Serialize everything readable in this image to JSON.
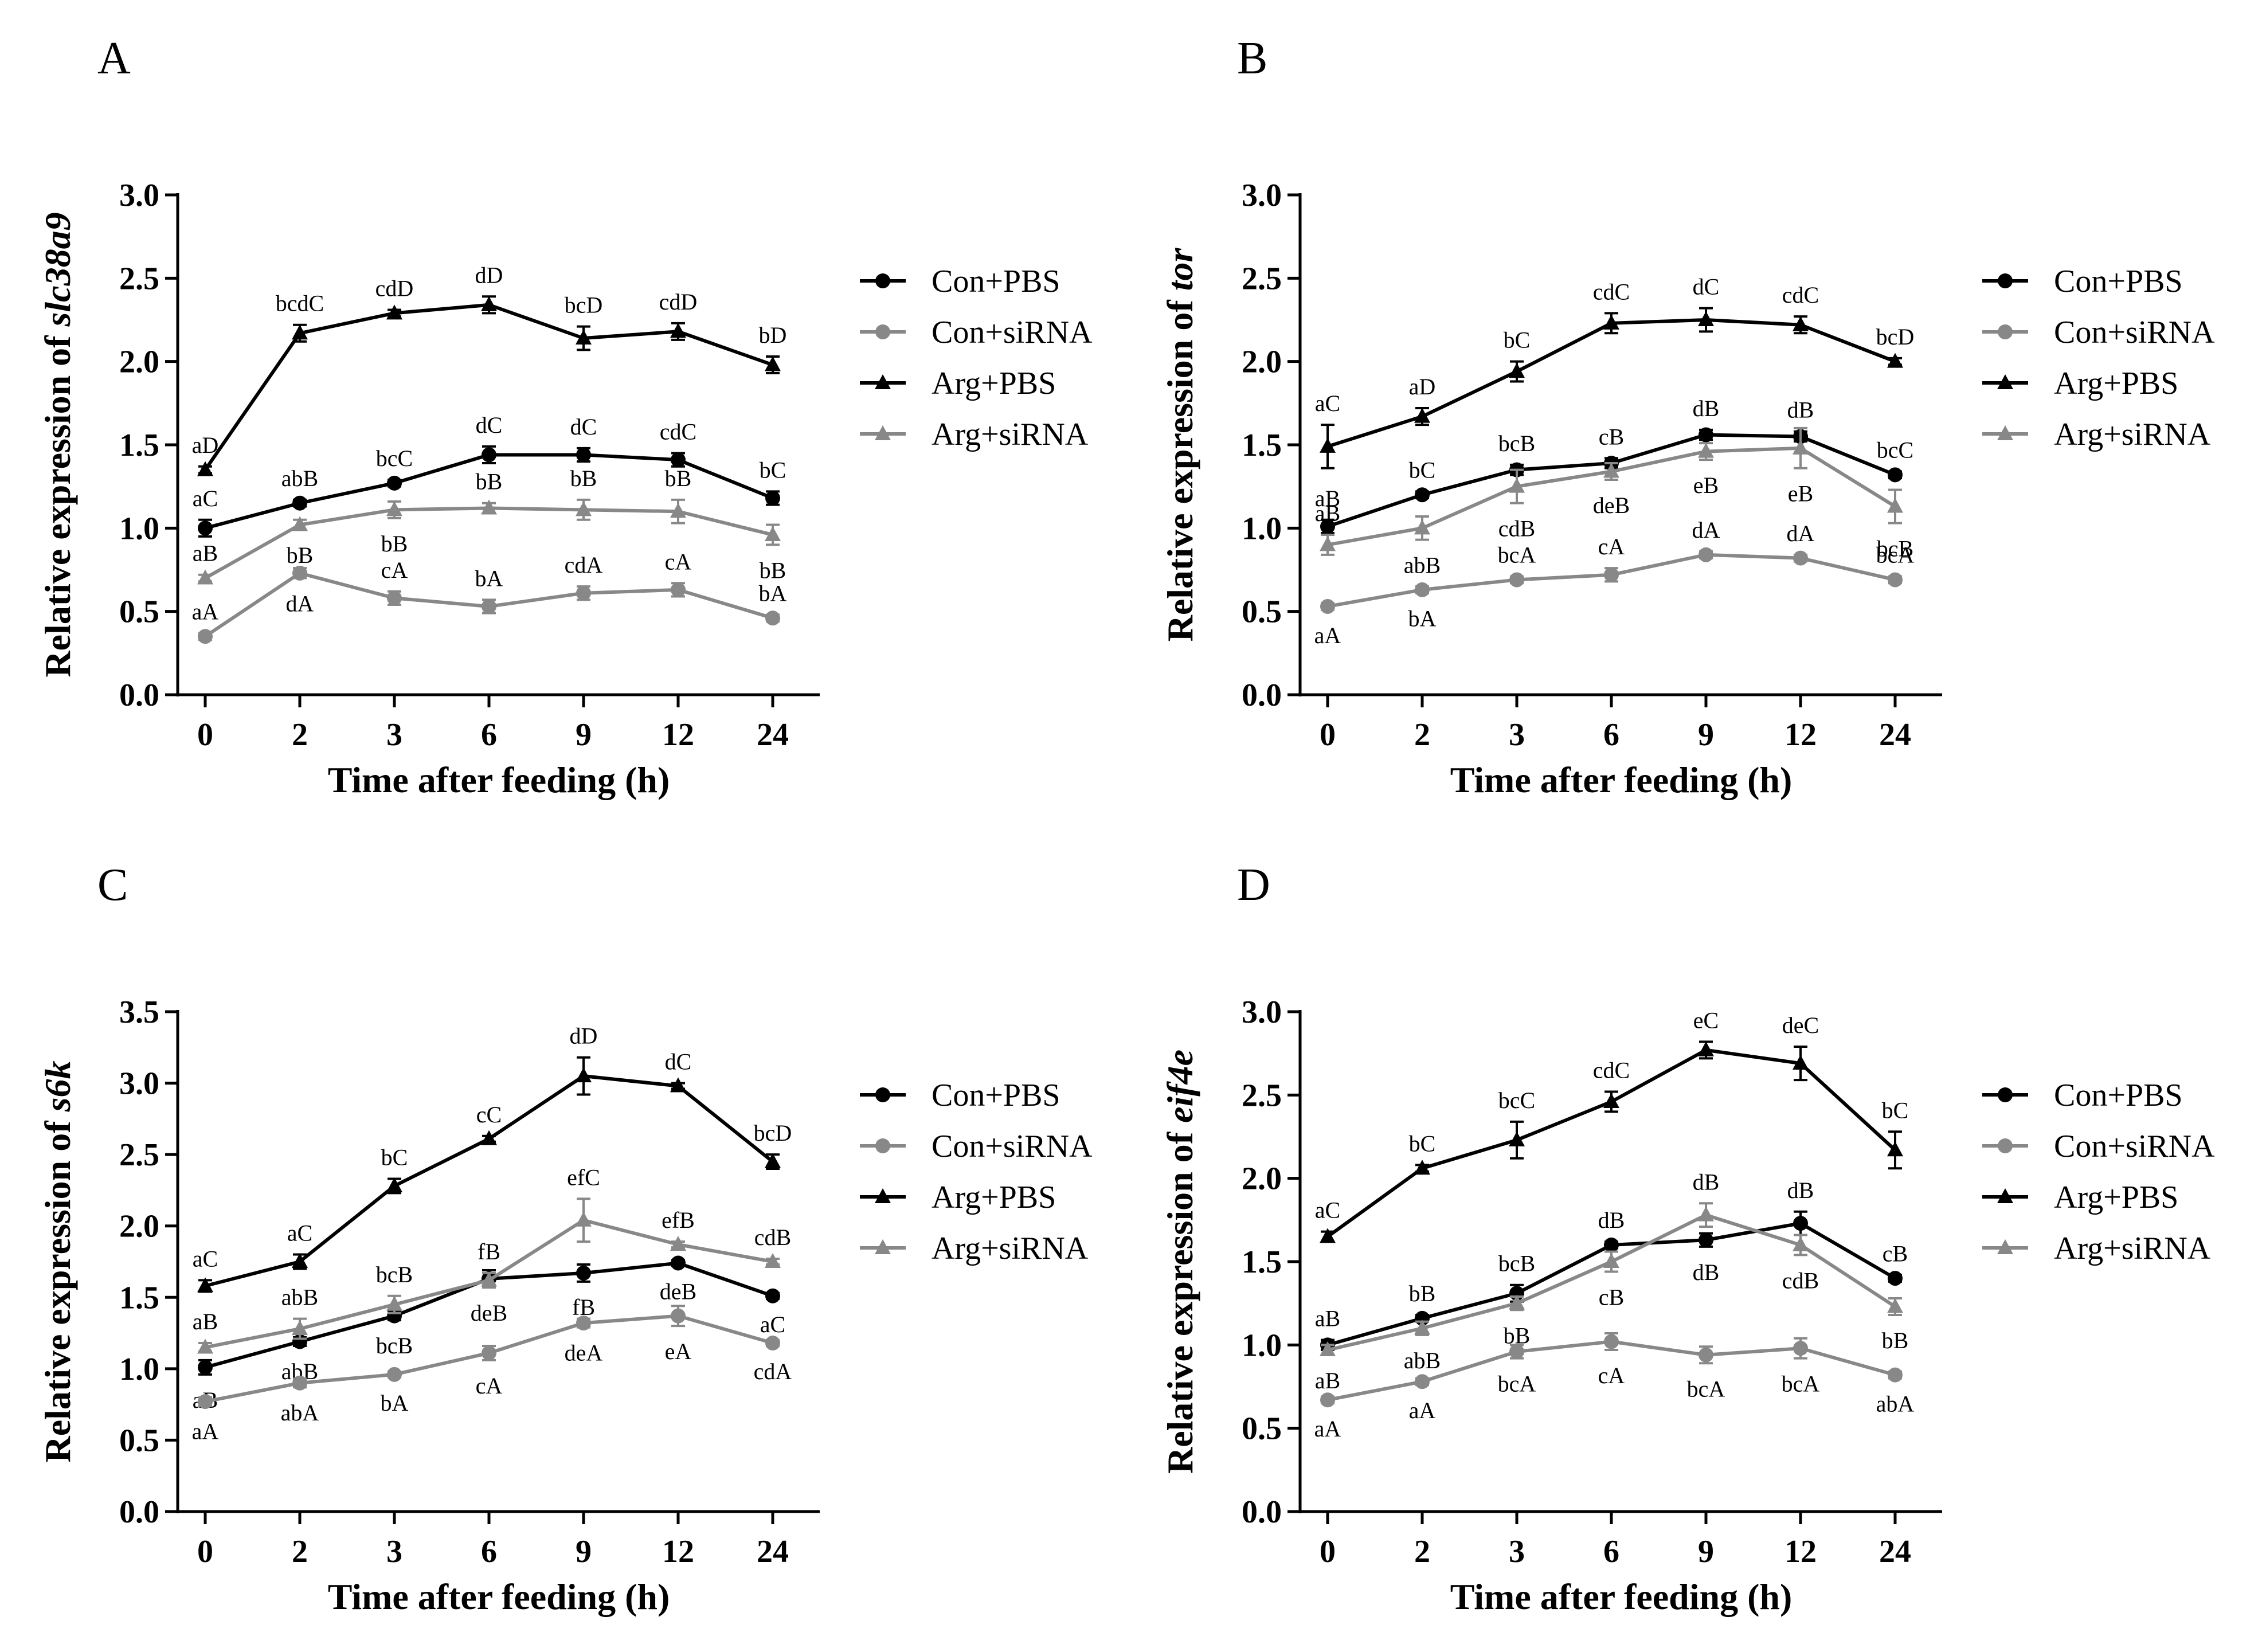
{
  "figure_labels": [
    "A",
    "B",
    "C",
    "D"
  ],
  "legend": [
    {
      "name": "Con+PBS",
      "color": "#000000",
      "marker": "circle"
    },
    {
      "name": "Con+siRNA",
      "color": "#808080",
      "marker": "circle"
    },
    {
      "name": "Arg+PBS",
      "color": "#000000",
      "marker": "triangle"
    },
    {
      "name": "Arg+siRNA",
      "color": "#808080",
      "marker": "triangle"
    }
  ],
  "chart_data": [
    {
      "panel": "A",
      "type": "line",
      "xlabel": "Time after feeding (h)",
      "ylabel_prefix": "Relative expression of ",
      "ylabel_gene": "slc38a9",
      "categories": [
        "0",
        "2",
        "3",
        "6",
        "9",
        "12",
        "24"
      ],
      "ylim": [
        0,
        3.0
      ],
      "yticks": [
        "0.0",
        "0.5",
        "1.0",
        "1.5",
        "2.0",
        "2.5",
        "3.0"
      ],
      "series": [
        {
          "name": "Con+PBS",
          "values": [
            1.0,
            1.15,
            1.27,
            1.44,
            1.44,
            1.41,
            1.18
          ],
          "errors": [
            0.05,
            0.02,
            0.02,
            0.05,
            0.04,
            0.04,
            0.04
          ],
          "labels": [
            "aC",
            "abB",
            "bcC",
            "dC",
            "dC",
            "cdC",
            "bC"
          ],
          "label_pos": [
            "above",
            "above",
            "above",
            "above",
            "above",
            "above",
            "above"
          ]
        },
        {
          "name": "Con+siRNA",
          "values": [
            0.35,
            0.73,
            0.58,
            0.53,
            0.61,
            0.63,
            0.46
          ],
          "errors": [
            0.02,
            0.03,
            0.04,
            0.04,
            0.04,
            0.04,
            0.02
          ],
          "labels": [
            "aA",
            "dA",
            "cA",
            "bA",
            "cdA",
            "cA",
            "bA"
          ],
          "label_pos": [
            "above",
            "below",
            "above",
            "above",
            "above",
            "above",
            "above"
          ]
        },
        {
          "name": "Arg+PBS",
          "values": [
            1.35,
            2.17,
            2.29,
            2.34,
            2.14,
            2.18,
            1.98
          ],
          "errors": [
            0.02,
            0.05,
            0.02,
            0.05,
            0.07,
            0.05,
            0.05
          ],
          "labels": [
            "aD",
            "bcdC",
            "cdD",
            "dD",
            "bcD",
            "cdD",
            "bD"
          ],
          "label_pos": [
            "above",
            "above",
            "above",
            "above",
            "above",
            "above",
            "above"
          ]
        },
        {
          "name": "Arg+siRNA",
          "values": [
            0.7,
            1.02,
            1.11,
            1.12,
            1.11,
            1.1,
            0.96
          ],
          "errors": [
            0.02,
            0.03,
            0.05,
            0.03,
            0.06,
            0.07,
            0.06
          ],
          "labels": [
            "aB",
            "bB",
            "bB",
            "bB",
            "bB",
            "bB",
            "bB"
          ],
          "label_pos": [
            "above",
            "below",
            "below",
            "above",
            "above",
            "above",
            "below"
          ]
        }
      ]
    },
    {
      "panel": "B",
      "type": "line",
      "xlabel": "Time after feeding (h)",
      "ylabel_prefix": "Relative expression of ",
      "ylabel_gene": "tor",
      "categories": [
        "0",
        "2",
        "3",
        "6",
        "9",
        "12",
        "24"
      ],
      "ylim": [
        0,
        3.0
      ],
      "yticks": [
        "0.0",
        "0.5",
        "1.0",
        "1.5",
        "2.0",
        "2.5",
        "3.0"
      ],
      "series": [
        {
          "name": "Con+PBS",
          "values": [
            1.01,
            1.2,
            1.35,
            1.39,
            1.56,
            1.55,
            1.32
          ],
          "errors": [
            0.04,
            0.02,
            0.03,
            0.03,
            0.03,
            0.03,
            0.02
          ],
          "labels": [
            "aB",
            "bC",
            "bcB",
            "cB",
            "dB",
            "dB",
            "bcC"
          ],
          "label_pos": [
            "above",
            "above",
            "above",
            "above",
            "above",
            "above",
            "above"
          ]
        },
        {
          "name": "Con+siRNA",
          "values": [
            0.53,
            0.63,
            0.69,
            0.72,
            0.84,
            0.82,
            0.69
          ],
          "errors": [
            0.02,
            0.02,
            0.02,
            0.04,
            0.02,
            0.02,
            0.02
          ],
          "labels": [
            "aA",
            "bA",
            "bcA",
            "cA",
            "dA",
            "dA",
            "bcA"
          ],
          "label_pos": [
            "below",
            "below",
            "above",
            "above",
            "above",
            "above",
            "above"
          ]
        },
        {
          "name": "Arg+PBS",
          "values": [
            1.49,
            1.67,
            1.94,
            2.23,
            2.25,
            2.22,
            2.0
          ],
          "errors": [
            0.13,
            0.05,
            0.06,
            0.06,
            0.07,
            0.05,
            0.02
          ],
          "labels": [
            "aC",
            "aD",
            "bC",
            "cdC",
            "dC",
            "cdC",
            "bcD"
          ],
          "label_pos": [
            "above",
            "above",
            "above",
            "above",
            "above",
            "above",
            "above"
          ]
        },
        {
          "name": "Arg+siRNA",
          "values": [
            0.9,
            1.0,
            1.25,
            1.34,
            1.46,
            1.48,
            1.13
          ],
          "errors": [
            0.06,
            0.07,
            0.1,
            0.05,
            0.05,
            0.12,
            0.1
          ],
          "labels": [
            "aB",
            "abB",
            "cdB",
            "deB",
            "eB",
            "eB",
            "bcB"
          ],
          "label_pos": [
            "above",
            "below",
            "below",
            "below",
            "below",
            "below",
            "below"
          ]
        }
      ]
    },
    {
      "panel": "C",
      "type": "line",
      "xlabel": "Time after feeding (h)",
      "ylabel_prefix": "Relative expression of ",
      "ylabel_gene": "s6k",
      "categories": [
        "0",
        "2",
        "3",
        "6",
        "9",
        "12",
        "24"
      ],
      "ylim": [
        0,
        3.5
      ],
      "yticks": [
        "0.0",
        "0.5",
        "1.0",
        "1.5",
        "2.0",
        "2.5",
        "3.0",
        "3.5"
      ],
      "series": [
        {
          "name": "Con+PBS",
          "values": [
            1.01,
            1.19,
            1.37,
            1.63,
            1.67,
            1.74,
            1.51
          ],
          "errors": [
            0.05,
            0.03,
            0.03,
            0.06,
            0.06,
            0.02,
            0.02
          ],
          "labels": [
            "aB",
            "abB",
            "bcB",
            "deB",
            "fB",
            "deB",
            "aC"
          ],
          "label_pos": [
            "below",
            "below",
            "below",
            "below",
            "below",
            "below",
            "below"
          ]
        },
        {
          "name": "Con+siRNA",
          "values": [
            0.77,
            0.9,
            0.96,
            1.11,
            1.32,
            1.37,
            1.18
          ],
          "errors": [
            0.03,
            0.03,
            0.02,
            0.05,
            0.03,
            0.07,
            0.02
          ],
          "labels": [
            "aA",
            "abA",
            "bA",
            "cA",
            "deA",
            "eA",
            "cdA"
          ],
          "label_pos": [
            "below",
            "below",
            "below",
            "below",
            "below",
            "below",
            "below"
          ]
        },
        {
          "name": "Arg+PBS",
          "values": [
            1.58,
            1.75,
            2.28,
            2.61,
            3.05,
            2.98,
            2.45
          ],
          "errors": [
            0.04,
            0.05,
            0.05,
            0.02,
            0.13,
            0.02,
            0.05
          ],
          "labels": [
            "aC",
            "aC",
            "bC",
            "cC",
            "dD",
            "dC",
            "bcD"
          ],
          "label_pos": [
            "above",
            "above",
            "above",
            "above",
            "above",
            "above",
            "above"
          ]
        },
        {
          "name": "Arg+siRNA",
          "values": [
            1.15,
            1.28,
            1.45,
            1.62,
            2.04,
            1.87,
            1.75
          ],
          "errors": [
            0.03,
            0.07,
            0.06,
            0.05,
            0.15,
            0.02,
            0.02
          ],
          "labels": [
            "aB",
            "abB",
            "bcB",
            "fB",
            "efC",
            "efB",
            "cdB"
          ],
          "label_pos": [
            "above",
            "above",
            "above",
            "above",
            "above",
            "above",
            "above"
          ]
        }
      ]
    },
    {
      "panel": "D",
      "type": "line",
      "xlabel": "Time after feeding (h)",
      "ylabel_prefix": "Relative expression of ",
      "ylabel_gene": "eif4e",
      "categories": [
        "0",
        "2",
        "3",
        "6",
        "9",
        "12",
        "24"
      ],
      "ylim": [
        0,
        3.0
      ],
      "yticks": [
        "0.0",
        "0.5",
        "1.0",
        "1.5",
        "2.0",
        "2.5",
        "3.0"
      ],
      "series": [
        {
          "name": "Con+PBS",
          "values": [
            1.0,
            1.16,
            1.31,
            1.6,
            1.63,
            1.73,
            1.4
          ],
          "errors": [
            0.03,
            0.02,
            0.05,
            0.02,
            0.04,
            0.07,
            0.02
          ],
          "labels": [
            "aB",
            "bB",
            "bcB",
            "dB",
            "dB",
            "dB",
            "cB"
          ],
          "label_pos": [
            "above",
            "above",
            "above",
            "above",
            "below",
            "above",
            "above"
          ]
        },
        {
          "name": "Con+siRNA",
          "values": [
            0.67,
            0.78,
            0.96,
            1.02,
            0.94,
            0.98,
            0.82
          ],
          "errors": [
            0.02,
            0.02,
            0.04,
            0.05,
            0.05,
            0.06,
            0.02
          ],
          "labels": [
            "aA",
            "aA",
            "bcA",
            "cA",
            "bcA",
            "bcA",
            "abA"
          ],
          "label_pos": [
            "below",
            "below",
            "below",
            "below",
            "below",
            "below",
            "below"
          ]
        },
        {
          "name": "Arg+PBS",
          "values": [
            1.65,
            2.06,
            2.23,
            2.46,
            2.77,
            2.69,
            2.17
          ],
          "errors": [
            0.03,
            0.02,
            0.11,
            0.06,
            0.05,
            0.1,
            0.11
          ],
          "labels": [
            "aC",
            "bC",
            "bcC",
            "cdC",
            "eC",
            "deC",
            "bC"
          ],
          "label_pos": [
            "above",
            "above",
            "above",
            "above",
            "above",
            "above",
            "above"
          ]
        },
        {
          "name": "Arg+siRNA",
          "values": [
            0.97,
            1.1,
            1.25,
            1.5,
            1.78,
            1.6,
            1.23
          ],
          "errors": [
            0.03,
            0.04,
            0.04,
            0.06,
            0.07,
            0.06,
            0.05
          ],
          "labels": [
            "aB",
            "abB",
            "bB",
            "cB",
            "dB",
            "cdB",
            "bB"
          ],
          "label_pos": [
            "below",
            "below",
            "below",
            "below",
            "above",
            "below",
            "below"
          ]
        }
      ]
    }
  ]
}
